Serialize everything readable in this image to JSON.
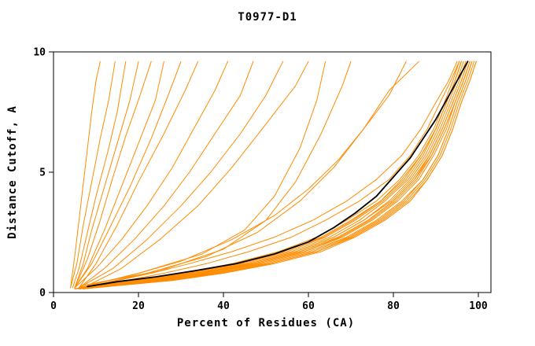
{
  "chart_data": {
    "type": "line",
    "title": "T0977-D1",
    "xlabel": "Percent of Residues (CA)",
    "ylabel": "Distance Cutoff, A",
    "xlim": [
      0,
      103
    ],
    "ylim": [
      0,
      10
    ],
    "x_ticks": [
      0,
      20,
      40,
      60,
      80,
      100
    ],
    "y_ticks": [
      0,
      5,
      10
    ],
    "grid": false,
    "legend": "none",
    "colors": {
      "models": "#ff8c00",
      "reference": "#000000",
      "frame": "#000000"
    },
    "series": {
      "models_bundle": {
        "y": [
          0.15,
          0.3,
          0.5,
          0.8,
          1.2,
          1.7,
          2.3,
          3.0,
          3.8,
          4.7,
          5.7,
          6.8,
          7.9,
          8.8,
          9.6
        ],
        "curves_x": [
          [
            5,
            12,
            22,
            34,
            46,
            57,
            66,
            73,
            79,
            84,
            88,
            91,
            93.5,
            95.5,
            97
          ],
          [
            6,
            14,
            25,
            37,
            49,
            60,
            69,
            76,
            82,
            87,
            90.5,
            93,
            95,
            97,
            98.5
          ],
          [
            5,
            11,
            20,
            31,
            43,
            54,
            63,
            70,
            77,
            82,
            86.5,
            90,
            92.5,
            94.5,
            96
          ],
          [
            6,
            13,
            24,
            36,
            48,
            59,
            68,
            75,
            81,
            86,
            89.5,
            92.5,
            94.5,
            96.5,
            98
          ],
          [
            5,
            12,
            21,
            33,
            45,
            56,
            65,
            72,
            78,
            83.5,
            87.5,
            90.5,
            93,
            95,
            96.5
          ],
          [
            7,
            15,
            27,
            39,
            51,
            62,
            70,
            77,
            83,
            87.5,
            91,
            93.5,
            95.5,
            97.5,
            99
          ],
          [
            5,
            10,
            19,
            30,
            42,
            53,
            62,
            69,
            76,
            81.5,
            86,
            89.5,
            92,
            94,
            95.5
          ],
          [
            6,
            13,
            23,
            35,
            47,
            58,
            67,
            74,
            80,
            85,
            88.5,
            91.5,
            94,
            96,
            97.5
          ],
          [
            7,
            16,
            28,
            40,
            52,
            63,
            71,
            78,
            84,
            88,
            91.5,
            94,
            96,
            98,
            99.5
          ],
          [
            5,
            11,
            21,
            32,
            44,
            55,
            64,
            71,
            77.5,
            83,
            87,
            90,
            92.5,
            94.5,
            96
          ],
          [
            6,
            14,
            26,
            38,
            50,
            61,
            69.5,
            76.5,
            82.5,
            87,
            90.5,
            93,
            95,
            97,
            98.5
          ],
          [
            5,
            12,
            22,
            34,
            46,
            57,
            66,
            73,
            79.5,
            84.5,
            88.5,
            91.5,
            94,
            96,
            97.5
          ],
          [
            6,
            13,
            24,
            36,
            48,
            59,
            67.5,
            74.5,
            80.5,
            85.5,
            89,
            92,
            94.5,
            96.5,
            98
          ],
          [
            7,
            15,
            27,
            39,
            51,
            62,
            70.5,
            77.5,
            83.5,
            88,
            91.5,
            94,
            96,
            98,
            99.5
          ],
          [
            5,
            11,
            20,
            31,
            43,
            54,
            63.5,
            70.5,
            77,
            82.5,
            86.5,
            90,
            92.5,
            94.5,
            96
          ],
          [
            6,
            12,
            23,
            35,
            47,
            58,
            67,
            74,
            80,
            85,
            89,
            92,
            94.5,
            96.5,
            98
          ],
          [
            5,
            10,
            17,
            26,
            36,
            46,
            56,
            64,
            72,
            79,
            84,
            88,
            91,
            93.5,
            95.5
          ],
          [
            5,
            9,
            15,
            23,
            32,
            42,
            52,
            61,
            69,
            76,
            82,
            86.5,
            90,
            93,
            95
          ]
        ]
      },
      "models_outliers": [
        {
          "x": [
            4,
            5,
            6,
            7,
            8,
            9,
            10,
            11
          ],
          "y": [
            0.2,
            1.5,
            3,
            4.5,
            6,
            7.5,
            8.8,
            9.6
          ]
        },
        {
          "x": [
            4,
            5.5,
            7,
            9,
            11,
            13,
            14.5
          ],
          "y": [
            0.2,
            1.2,
            2.8,
            4.6,
            6.4,
            8,
            9.6
          ]
        },
        {
          "x": [
            4.5,
            6,
            8,
            10,
            13,
            15,
            17
          ],
          "y": [
            0.2,
            1,
            2.5,
            4,
            6,
            7.5,
            9.6
          ]
        },
        {
          "x": [
            5,
            7,
            9,
            12,
            15,
            18,
            20
          ],
          "y": [
            0.2,
            1.2,
            2.6,
            4.4,
            6.2,
            8,
            9.6
          ]
        },
        {
          "x": [
            5,
            8,
            11,
            14,
            17,
            20,
            23
          ],
          "y": [
            0.2,
            1.4,
            3,
            4.8,
            6.5,
            8,
            9.6
          ]
        },
        {
          "x": [
            5,
            8,
            12,
            16,
            20,
            24,
            26
          ],
          "y": [
            0.2,
            1,
            2.6,
            4.4,
            6.2,
            8,
            9.6
          ]
        },
        {
          "x": [
            5,
            9,
            13,
            18,
            23,
            27,
            30
          ],
          "y": [
            0.2,
            1.2,
            2.6,
            4.4,
            6.4,
            8.2,
            9.6
          ]
        },
        {
          "x": [
            6,
            10,
            15,
            20,
            26,
            31,
            34
          ],
          "y": [
            0.2,
            1.2,
            2.8,
            4.6,
            6.6,
            8.4,
            9.6
          ]
        },
        {
          "x": [
            5,
            10,
            16,
            22,
            28,
            33,
            38,
            41
          ],
          "y": [
            0.2,
            1,
            2.2,
            3.6,
            5.2,
            6.8,
            8.4,
            9.6
          ]
        },
        {
          "x": [
            6,
            12,
            19,
            26,
            32,
            38,
            44,
            47
          ],
          "y": [
            0.2,
            1,
            2.2,
            3.6,
            5,
            6.6,
            8.2,
            9.6
          ]
        },
        {
          "x": [
            6,
            14,
            22,
            30,
            37,
            44,
            50,
            54
          ],
          "y": [
            0.2,
            1,
            2.2,
            3.6,
            5,
            6.6,
            8.2,
            9.6
          ]
        },
        {
          "x": [
            7,
            16,
            25,
            34,
            42,
            50,
            57,
            60
          ],
          "y": [
            0.2,
            1,
            2.2,
            3.6,
            5.2,
            7,
            8.6,
            9.6
          ]
        },
        {
          "x": [
            6,
            20,
            35,
            45,
            52,
            58,
            62,
            64
          ],
          "y": [
            0.2,
            0.8,
            1.6,
            2.6,
            4,
            6,
            8,
            9.6
          ]
        },
        {
          "x": [
            7,
            25,
            40,
            50,
            57,
            63,
            68,
            70
          ],
          "y": [
            0.3,
            0.9,
            1.8,
            3,
            4.6,
            6.6,
            8.6,
            9.6
          ]
        },
        {
          "x": [
            6,
            18,
            30,
            42,
            52,
            60,
            67,
            73,
            79,
            83
          ],
          "y": [
            0.2,
            0.7,
            1.3,
            2.2,
            3.2,
            4.3,
            5.5,
            6.8,
            8.2,
            9.6
          ]
        },
        {
          "x": [
            7,
            22,
            36,
            48,
            58,
            66,
            73,
            79,
            86
          ],
          "y": [
            0.2,
            0.8,
            1.5,
            2.5,
            3.8,
            5.2,
            6.8,
            8.4,
            9.6
          ]
        }
      ],
      "reference": {
        "x": [
          8,
          15,
          24,
          33,
          43,
          52,
          60,
          66,
          71,
          76,
          80,
          84,
          87,
          90,
          92.5,
          95,
          97.5
        ],
        "y": [
          0.25,
          0.45,
          0.65,
          0.9,
          1.2,
          1.6,
          2.1,
          2.7,
          3.3,
          4.0,
          4.8,
          5.6,
          6.4,
          7.2,
          8.0,
          8.8,
          9.6
        ]
      }
    }
  }
}
